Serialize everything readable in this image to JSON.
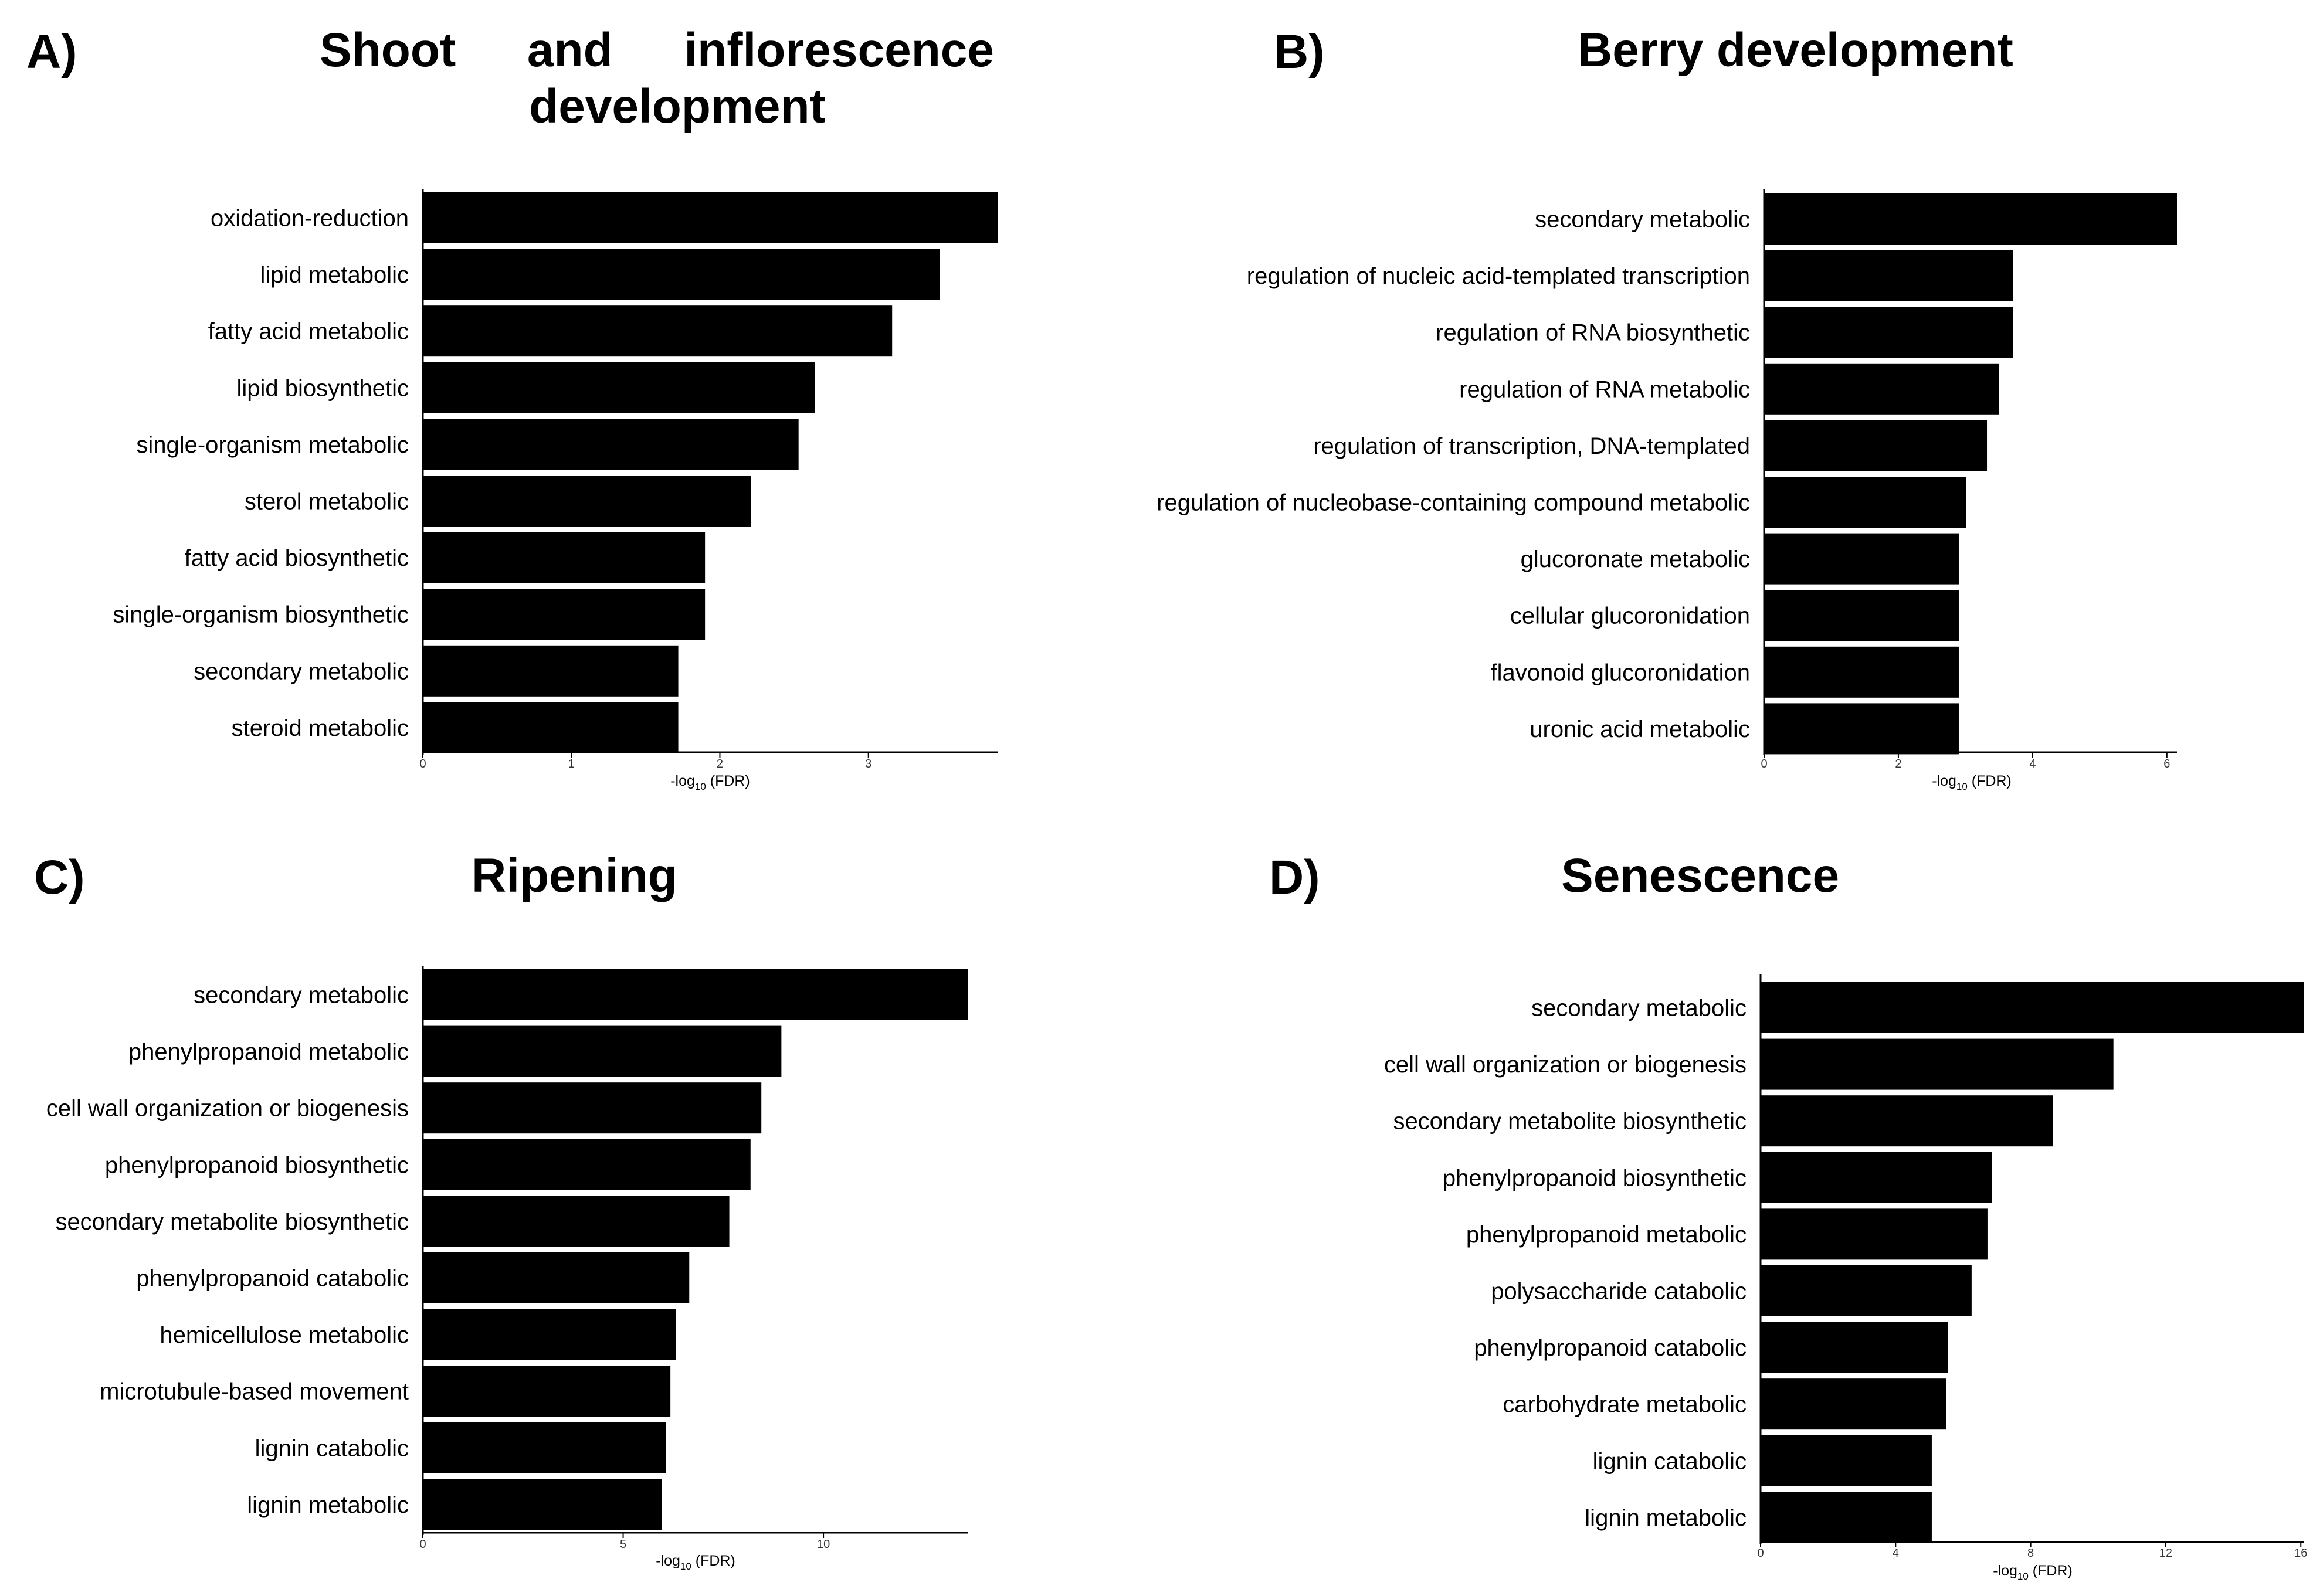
{
  "chart_data": [
    {
      "panel": "A)",
      "title": "Shoot and inflorescence development",
      "title_line_1": "Shoot and inflorescence",
      "title_line_2": "development",
      "type": "bar",
      "orientation": "horizontal",
      "categories": [
        "oxidation-reduction",
        "lipid metabolic",
        "fatty acid metabolic",
        "lipid biosynthetic",
        "single-organism metabolic",
        "sterol metabolic",
        "fatty acid biosynthetic",
        "single-organism biosynthetic",
        "secondary metabolic",
        "steroid metabolic"
      ],
      "values": [
        3.87,
        3.48,
        3.16,
        2.64,
        2.53,
        2.21,
        1.9,
        1.9,
        1.72,
        1.72
      ],
      "xlabel": "-log10 (FDR)",
      "xlim": [
        0,
        3.87
      ],
      "xticks": [
        0,
        1,
        2,
        3
      ]
    },
    {
      "panel": "B)",
      "title": "Berry development",
      "type": "bar",
      "orientation": "horizontal",
      "categories": [
        "secondary metabolic",
        "regulation of nucleic acid-templated transcription",
        "regulation of RNA biosynthetic",
        "regulation of RNA metabolic",
        "regulation of transcription, DNA-templated",
        "regulation of nucleobase-containing compound metabolic",
        "glucoronate metabolic",
        "cellular glucoronidation",
        "flavonoid glucoronidation",
        "uronic acid metabolic"
      ],
      "values": [
        6.15,
        3.71,
        3.71,
        3.5,
        3.32,
        3.01,
        2.9,
        2.9,
        2.9,
        2.9
      ],
      "xlabel": "-log10 (FDR)",
      "xlim": [
        0,
        6.15
      ],
      "xticks": [
        0,
        2,
        4,
        6
      ]
    },
    {
      "panel": "C)",
      "title": "Ripening",
      "type": "bar",
      "orientation": "horizontal",
      "categories": [
        "secondary metabolic",
        "phenylpropanoid metabolic",
        "cell wall organization or biogenesis",
        "phenylpropanoid biosynthetic",
        "secondary metabolite biosynthetic",
        "phenylpropanoid catabolic",
        "hemicellulose metabolic",
        "microtubule-based movement",
        "lignin catabolic",
        "lignin metabolic"
      ],
      "values": [
        13.6,
        8.95,
        8.45,
        8.18,
        7.65,
        6.65,
        6.32,
        6.18,
        6.07,
        5.96
      ],
      "xlabel": "-log10 (FDR)",
      "xlim": [
        0,
        13.6
      ],
      "xticks": [
        0,
        5,
        10
      ]
    },
    {
      "panel": "D)",
      "title": "Senescence",
      "type": "bar",
      "orientation": "horizontal",
      "categories": [
        "secondary metabolic",
        "cell wall organization or biogenesis",
        "secondary metabolite biosynthetic",
        "phenylpropanoid biosynthetic",
        "phenylpropanoid metabolic",
        "polysaccharide catabolic",
        "phenylpropanoid catabolic",
        "carbohydrate metabolic",
        "lignin catabolic",
        "lignin metabolic"
      ],
      "values": [
        16.1,
        10.45,
        8.65,
        6.85,
        6.72,
        6.25,
        5.55,
        5.5,
        5.07,
        5.07
      ],
      "xlabel": "-log10 (FDR)",
      "xlim": [
        0,
        16.1
      ],
      "xticks": [
        0,
        4,
        8,
        12,
        16
      ]
    }
  ],
  "colors": {
    "bar": "#000000",
    "axis": "#000000",
    "background": "#ffffff"
  }
}
